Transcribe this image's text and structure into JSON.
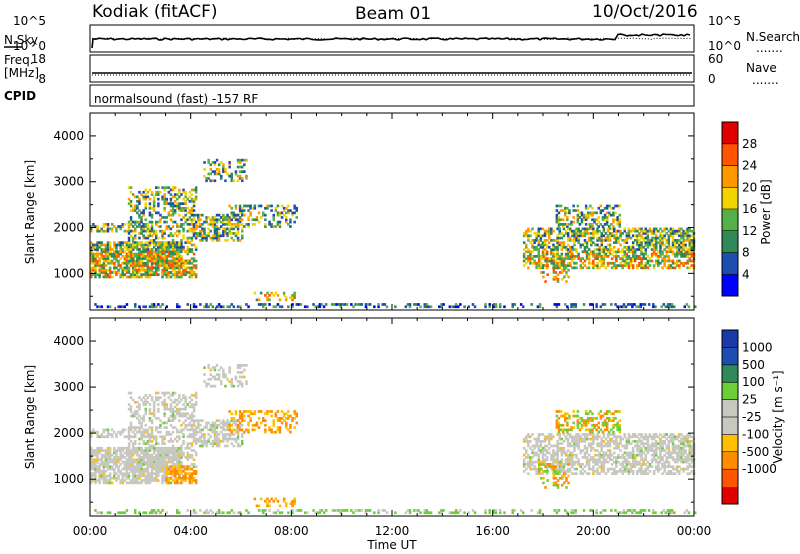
{
  "header": {
    "station": "Kodiak (fitACF)",
    "beam": "Beam 01",
    "date": "10/Oct/2016"
  },
  "top_panels": {
    "nsky_label": "N.Sky",
    "nsky_ticks": [
      "10^5",
      "10^0"
    ],
    "nsearch_label": "N.Search",
    "nsearch_ticks": [
      "10^5",
      "10^0"
    ],
    "freq_label_1": "Freq.",
    "freq_label_2": "[MHz]",
    "freq_ticks": [
      "18",
      "8"
    ],
    "nave_label": "Nave",
    "nave_ticks": [
      "60",
      "0"
    ],
    "cpid_label": "CPID",
    "cpid_text": "normalsound (fast) -157 RF",
    "legend_dots": "......."
  },
  "colors": {
    "power_scale": [
      "#0000ff",
      "#1e4db0",
      "#2e8b57",
      "#55b04a",
      "#f2d400",
      "#ff9900",
      "#ff5500",
      "#e00000"
    ],
    "velocity_scale": [
      "#e00000",
      "#ff5500",
      "#ff8c00",
      "#ffbf00",
      "#c8c8c0",
      "#c8c8c0",
      "#6ccf3a",
      "#2e8b57",
      "#1e4db0",
      "#1a3aa8"
    ]
  },
  "chart_data": [
    {
      "type": "heatmap",
      "name": "power",
      "ylabel": "Slant Range [km]",
      "xlabel": "Time UT",
      "x_ticks": [
        "00:00",
        "04:00",
        "08:00",
        "12:00",
        "16:00",
        "20:00",
        "00:00"
      ],
      "y_ticks": [
        "1000",
        "2000",
        "3000",
        "4000"
      ],
      "ylim": [
        200,
        4500
      ],
      "xlim_hours": [
        0,
        24
      ],
      "colorbar_label": "Power [dB]",
      "colorbar_ticks": [
        "4",
        "8",
        "12",
        "16",
        "20",
        "24",
        "28"
      ],
      "colorbar_range": [
        0,
        30
      ]
    },
    {
      "type": "heatmap",
      "name": "velocity",
      "ylabel": "Slant Range [km]",
      "xlabel": "Time UT",
      "x_ticks": [
        "00:00",
        "04:00",
        "08:00",
        "12:00",
        "16:00",
        "20:00",
        "00:00"
      ],
      "y_ticks": [
        "1000",
        "2000",
        "3000",
        "4000"
      ],
      "ylim": [
        200,
        4500
      ],
      "xlim_hours": [
        0,
        24
      ],
      "colorbar_label": "Velocity [m s⁻¹]",
      "colorbar_ticks": [
        "1000",
        "500",
        "100",
        "25",
        "-25",
        "-100",
        "-500",
        "-1000"
      ]
    }
  ],
  "axis_title": "Time UT"
}
